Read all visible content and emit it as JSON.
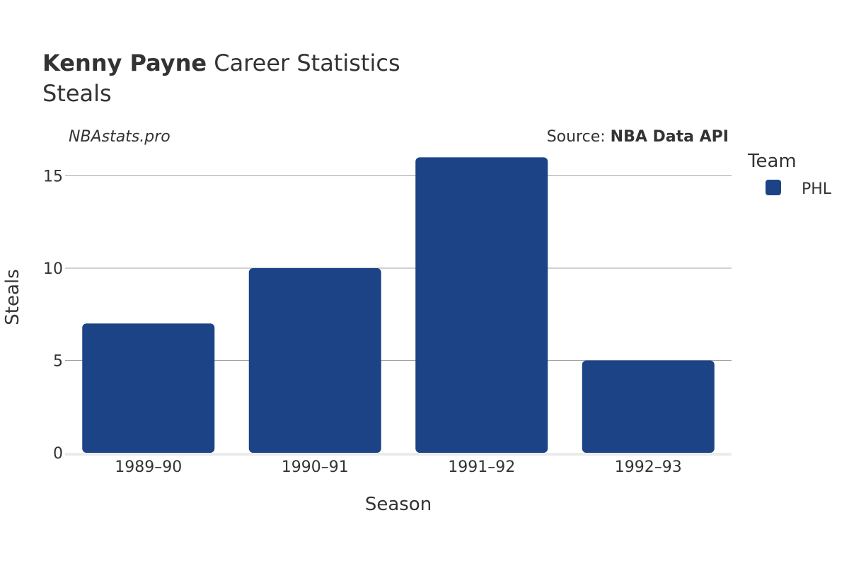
{
  "header": {
    "title_bold": "Kenny Payne",
    "title_rest": " Career Statistics",
    "subtitle": "Steals",
    "watermark": "NBAstats.pro",
    "source_prefix": "Source: ",
    "source_name": "NBA Data API"
  },
  "legend": {
    "title": "Team",
    "items": [
      {
        "label": "PHL",
        "color": "#1c4386"
      }
    ]
  },
  "chart_data": {
    "type": "bar",
    "categories": [
      "1989–90",
      "1990–91",
      "1991–92",
      "1992–93"
    ],
    "series": [
      {
        "name": "PHL",
        "values": [
          7,
          10,
          16,
          5
        ],
        "color": "#1c4386"
      }
    ],
    "xlabel": "Season",
    "ylabel": "Steals",
    "ylim": [
      0,
      16.8
    ],
    "yticks": [
      0,
      5,
      10,
      15
    ],
    "grid": true,
    "legend_position": "right"
  }
}
